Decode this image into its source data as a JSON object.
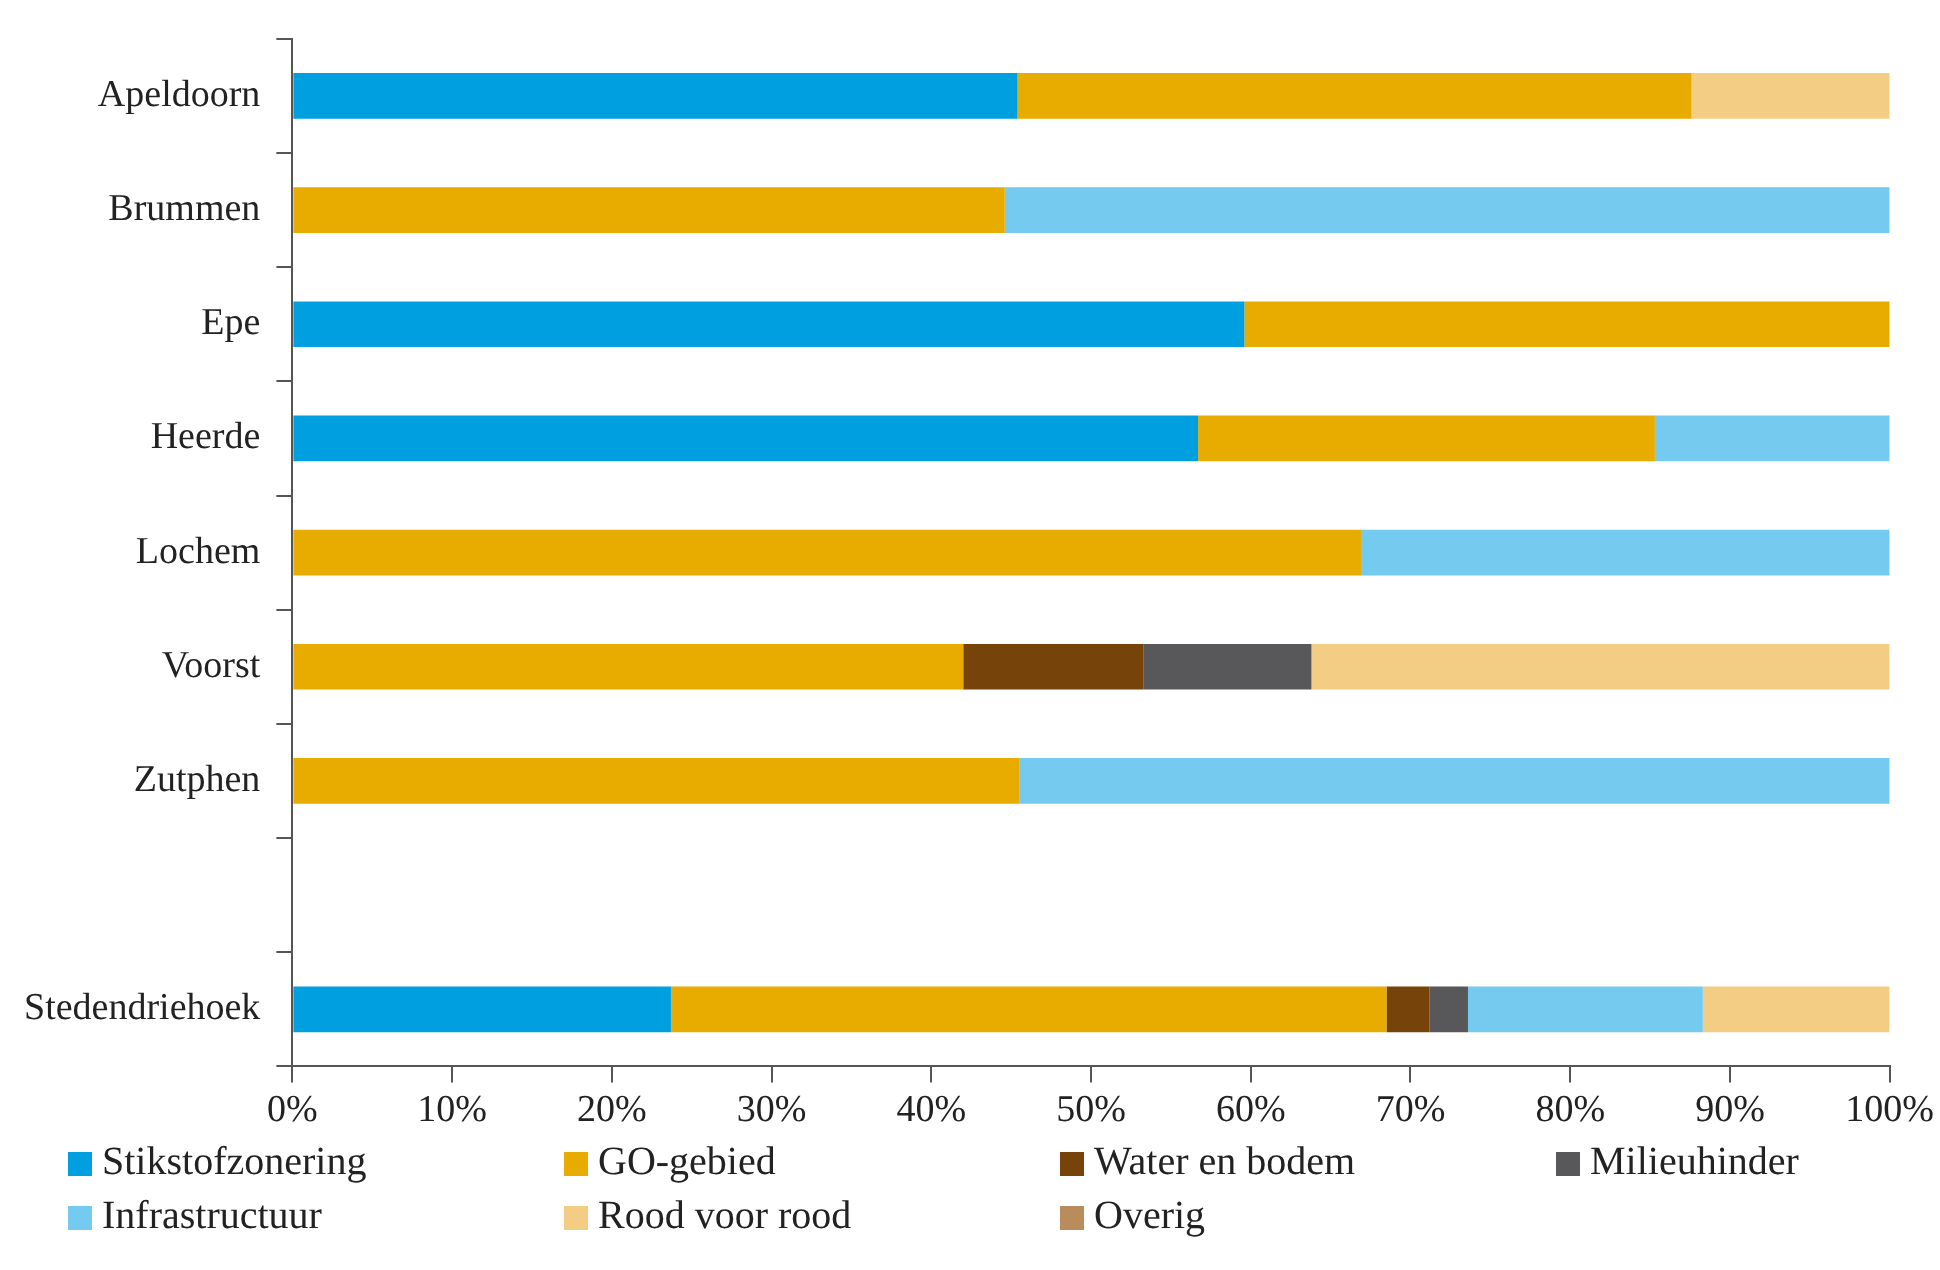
{
  "chart_data": {
    "type": "bar",
    "orientation": "horizontal",
    "stacked": true,
    "categories": [
      "Apeldoorn",
      "Brummen",
      "Epe",
      "Heerde",
      "Lochem",
      "Voorst",
      "Zutphen",
      null,
      "Stedendriehoek"
    ],
    "series": [
      {
        "name": "Stikstofzonering",
        "color": "#009fe0",
        "values": [
          45.4,
          null,
          59.6,
          56.7,
          null,
          null,
          null,
          null,
          23.7
        ]
      },
      {
        "name": "GO-gebied",
        "color": "#e8ab00",
        "values": [
          42.2,
          44.6,
          40.4,
          28.6,
          66.9,
          42.0,
          45.5,
          null,
          44.8
        ]
      },
      {
        "name": "Water en bodem",
        "color": "#76440a",
        "values": [
          null,
          null,
          null,
          null,
          null,
          11.3,
          null,
          null,
          2.7
        ]
      },
      {
        "name": "Milieuhinder",
        "color": "#58585a",
        "values": [
          null,
          null,
          null,
          null,
          null,
          10.5,
          null,
          null,
          2.4
        ]
      },
      {
        "name": "Infrastructuur",
        "color": "#74caef",
        "values": [
          null,
          55.4,
          null,
          14.7,
          33.1,
          null,
          54.5,
          null,
          14.7
        ]
      },
      {
        "name": "Rood voor rood",
        "color": "#f3cd84",
        "values": [
          12.4,
          null,
          null,
          null,
          null,
          36.2,
          null,
          null,
          11.7
        ]
      },
      {
        "name": "Overig",
        "color": "#b98c5c",
        "values": [
          null,
          null,
          null,
          null,
          null,
          null,
          null,
          null,
          null
        ]
      }
    ],
    "xlim": [
      0,
      100
    ],
    "xticks": [
      {
        "value": 0,
        "label": "0%"
      },
      {
        "value": 10,
        "label": "10%"
      },
      {
        "value": 20,
        "label": "20%"
      },
      {
        "value": 30,
        "label": "30%"
      },
      {
        "value": 40,
        "label": "40%"
      },
      {
        "value": 50,
        "label": "50%"
      },
      {
        "value": 60,
        "label": "60%"
      },
      {
        "value": 70,
        "label": "70%"
      },
      {
        "value": 80,
        "label": "80%"
      },
      {
        "value": 90,
        "label": "90%"
      },
      {
        "value": 100,
        "label": "100%"
      }
    ],
    "grid": false,
    "legend": "bottom"
  }
}
